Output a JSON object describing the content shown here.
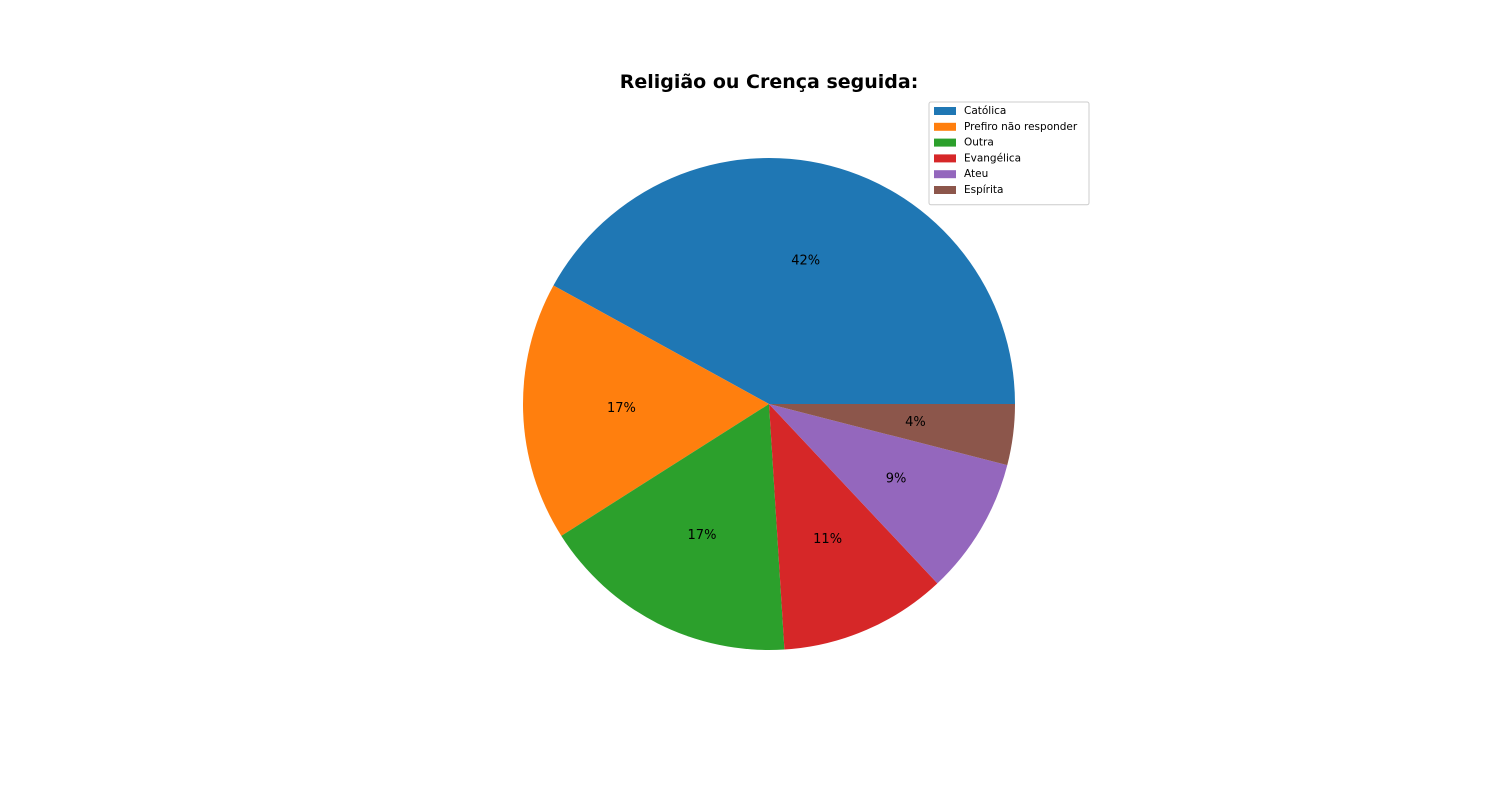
{
  "chart_data": {
    "type": "pie",
    "title": "Religião ou Crença seguida:",
    "categories": [
      "Católica",
      "Prefiro não responder",
      "Outra",
      "Evangélica",
      "Ateu",
      "Espírita"
    ],
    "values": [
      42,
      17,
      17,
      11,
      9,
      4
    ],
    "labels": [
      "42%",
      "17%",
      "17%",
      "11%",
      "9%",
      "4%"
    ],
    "colors": [
      "#1f77b4",
      "#ff7f0e",
      "#2ca02c",
      "#d62728",
      "#9467bd",
      "#8c564b"
    ],
    "legend_position": "top-right",
    "start_angle": 0,
    "direction": "counterclockwise"
  }
}
